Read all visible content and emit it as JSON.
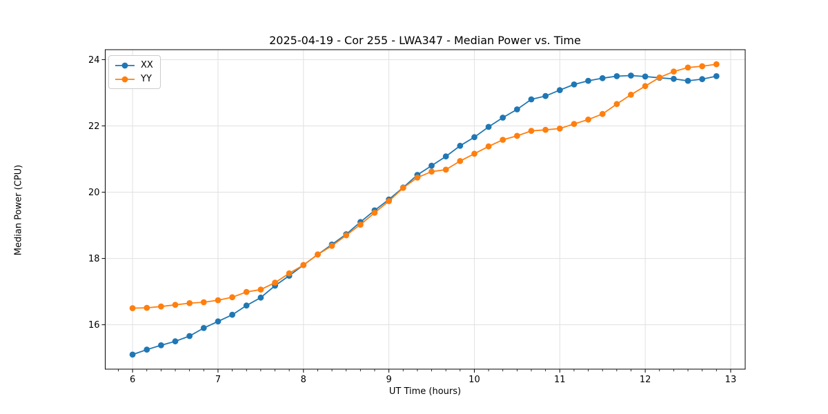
{
  "chart_data": {
    "type": "line",
    "title": "2025-04-19 - Cor 255 - LWA347 - Median Power vs. Time",
    "xlabel": "UT Time (hours)",
    "ylabel": "Median Power (CPU)",
    "xlim": [
      5.68,
      13.17
    ],
    "ylim": [
      14.66,
      24.3
    ],
    "x_ticks": [
      6,
      7,
      8,
      9,
      10,
      11,
      12,
      13
    ],
    "y_ticks": [
      16,
      18,
      20,
      22,
      24
    ],
    "x_minor_step": 0.1666667,
    "grid": true,
    "legend_position": "upper-left",
    "colors": {
      "spine": "#000000",
      "grid": "#e0e0e0",
      "background": "#ffffff"
    },
    "x": [
      6.0,
      6.167,
      6.333,
      6.5,
      6.667,
      6.833,
      7.0,
      7.167,
      7.333,
      7.5,
      7.667,
      7.833,
      8.0,
      8.167,
      8.333,
      8.5,
      8.667,
      8.833,
      9.0,
      9.167,
      9.333,
      9.5,
      9.667,
      9.833,
      10.0,
      10.167,
      10.333,
      10.5,
      10.667,
      10.833,
      11.0,
      11.167,
      11.333,
      11.5,
      11.667,
      11.833,
      12.0,
      12.167,
      12.333,
      12.5,
      12.667,
      12.833
    ],
    "series": [
      {
        "name": "XX",
        "color": "#1f77b4",
        "values": [
          15.1,
          15.25,
          15.38,
          15.5,
          15.66,
          15.9,
          16.1,
          16.3,
          16.58,
          16.82,
          17.18,
          17.48,
          17.8,
          18.12,
          18.42,
          18.73,
          19.1,
          19.45,
          19.78,
          20.14,
          20.52,
          20.8,
          21.08,
          21.4,
          21.66,
          21.97,
          22.25,
          22.5,
          22.8,
          22.9,
          23.08,
          23.25,
          23.36,
          23.44,
          23.5,
          23.52,
          23.49,
          23.45,
          23.42,
          23.36,
          23.41,
          23.5
        ]
      },
      {
        "name": "YY",
        "color": "#ff7f0e",
        "values": [
          16.5,
          16.51,
          16.55,
          16.6,
          16.65,
          16.68,
          16.74,
          16.83,
          16.99,
          17.06,
          17.27,
          17.55,
          17.8,
          18.12,
          18.38,
          18.7,
          19.02,
          19.38,
          19.73,
          20.13,
          20.44,
          20.62,
          20.68,
          20.94,
          21.16,
          21.38,
          21.58,
          21.7,
          21.85,
          21.88,
          21.92,
          22.06,
          22.19,
          22.36,
          22.66,
          22.94,
          23.2,
          23.46,
          23.64,
          23.76,
          23.8,
          23.86
        ]
      }
    ]
  }
}
